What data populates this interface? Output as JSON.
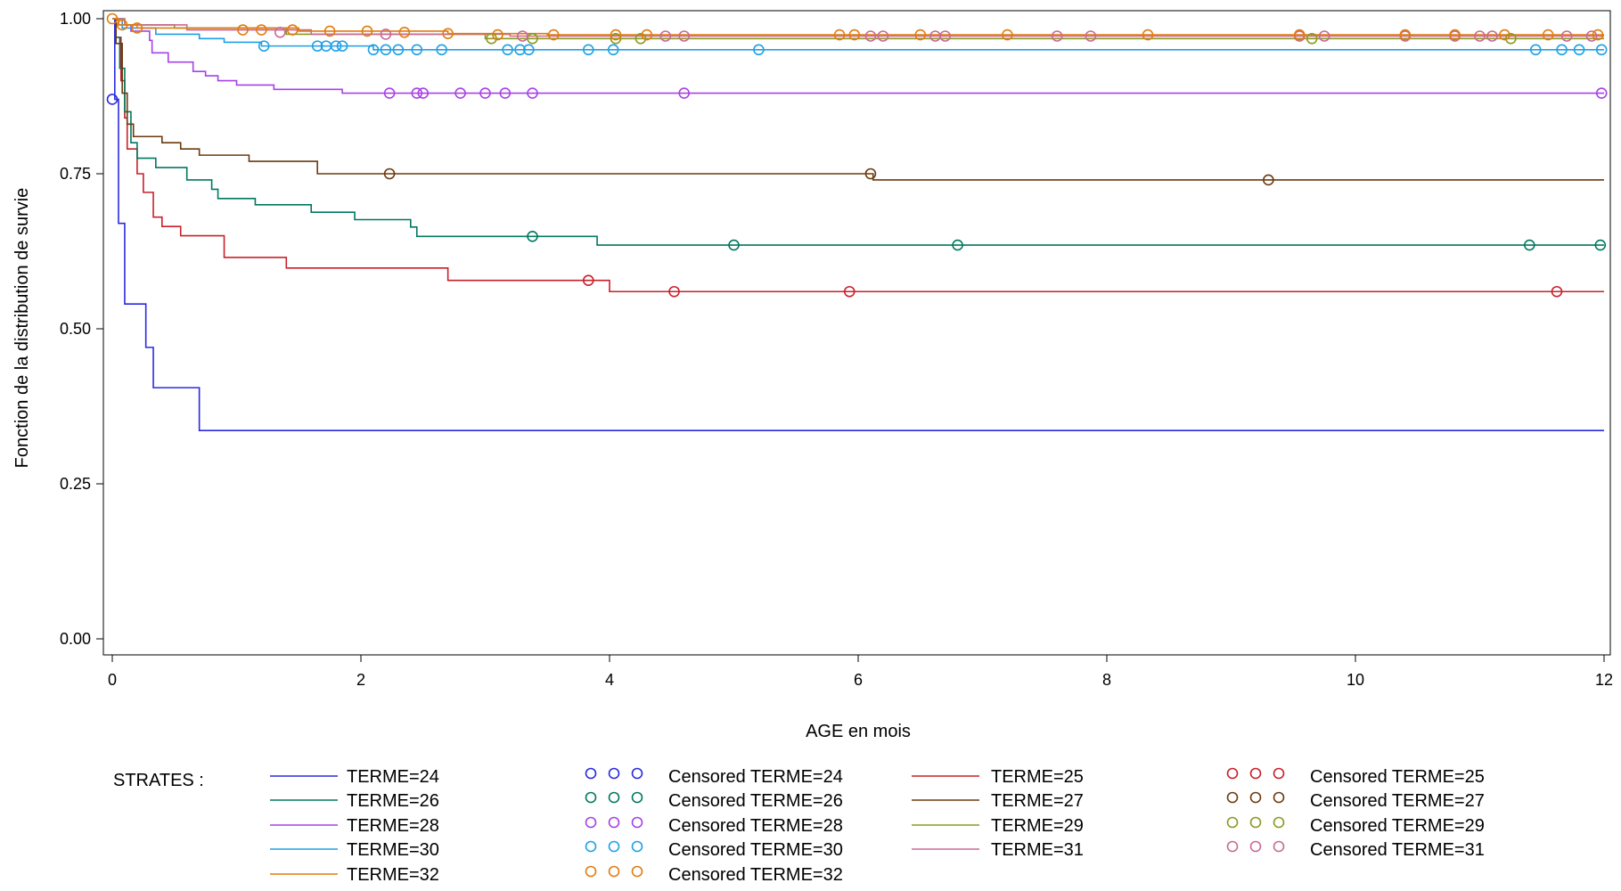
{
  "chart_data": {
    "type": "line",
    "subtype": "kaplan-meier survival step plot",
    "xlabel": "AGE en mois",
    "ylabel": "Fonction de la distribution de survie",
    "xlim": [
      0,
      12
    ],
    "ylim": [
      0,
      1
    ],
    "x_ticks": [
      "0",
      "2",
      "4",
      "6",
      "8",
      "10",
      "12"
    ],
    "y_ticks": [
      "0.00",
      "0.25",
      "0.50",
      "0.75",
      "1.00"
    ],
    "grid": false,
    "legend_title": "STRATES :",
    "legend_position": "bottom",
    "series": [
      {
        "name": "TERME=24",
        "censored_name": "Censored TERME=24",
        "color": "#2a2ae0",
        "steps": [
          [
            0,
            1.0
          ],
          [
            0.02,
            0.87
          ],
          [
            0.05,
            0.67
          ],
          [
            0.1,
            0.54
          ],
          [
            0.27,
            0.47
          ],
          [
            0.33,
            0.405
          ],
          [
            0.7,
            0.336
          ],
          [
            12,
            0.336
          ]
        ],
        "censored": [
          [
            0.0,
            0.87
          ]
        ]
      },
      {
        "name": "TERME=25",
        "censored_name": "Censored TERME=25",
        "color": "#c8202a",
        "steps": [
          [
            0,
            1.0
          ],
          [
            0.03,
            0.97
          ],
          [
            0.07,
            0.9
          ],
          [
            0.1,
            0.84
          ],
          [
            0.12,
            0.79
          ],
          [
            0.2,
            0.75
          ],
          [
            0.25,
            0.72
          ],
          [
            0.33,
            0.68
          ],
          [
            0.4,
            0.665
          ],
          [
            0.55,
            0.65
          ],
          [
            0.9,
            0.615
          ],
          [
            1.4,
            0.598
          ],
          [
            2.7,
            0.578
          ],
          [
            4.0,
            0.56
          ],
          [
            12,
            0.56
          ]
        ],
        "censored": [
          [
            3.83,
            0.578
          ],
          [
            4.52,
            0.56
          ],
          [
            5.93,
            0.56
          ],
          [
            11.62,
            0.56
          ]
        ]
      },
      {
        "name": "TERME=26",
        "censored_name": "Censored TERME=26",
        "color": "#007860",
        "steps": [
          [
            0,
            1.0
          ],
          [
            0.03,
            0.97
          ],
          [
            0.06,
            0.92
          ],
          [
            0.1,
            0.85
          ],
          [
            0.15,
            0.8
          ],
          [
            0.2,
            0.775
          ],
          [
            0.35,
            0.76
          ],
          [
            0.6,
            0.74
          ],
          [
            0.8,
            0.725
          ],
          [
            0.85,
            0.71
          ],
          [
            1.15,
            0.7
          ],
          [
            1.6,
            0.688
          ],
          [
            1.95,
            0.676
          ],
          [
            2.4,
            0.664
          ],
          [
            2.45,
            0.649
          ],
          [
            3.9,
            0.635
          ],
          [
            12,
            0.635
          ]
        ],
        "censored": [
          [
            3.38,
            0.649
          ],
          [
            5.0,
            0.635
          ],
          [
            6.8,
            0.635
          ],
          [
            11.4,
            0.635
          ],
          [
            11.97,
            0.635
          ]
        ]
      },
      {
        "name": "TERME=27",
        "censored_name": "Censored TERME=27",
        "color": "#6b3a0e",
        "steps": [
          [
            0,
            1.0
          ],
          [
            0.03,
            0.96
          ],
          [
            0.08,
            0.88
          ],
          [
            0.12,
            0.83
          ],
          [
            0.17,
            0.81
          ],
          [
            0.4,
            0.8
          ],
          [
            0.55,
            0.79
          ],
          [
            0.7,
            0.78
          ],
          [
            1.1,
            0.77
          ],
          [
            1.65,
            0.75
          ],
          [
            6.12,
            0.74
          ],
          [
            12,
            0.74
          ]
        ],
        "censored": [
          [
            2.23,
            0.75
          ],
          [
            6.1,
            0.75
          ],
          [
            9.3,
            0.74
          ]
        ]
      },
      {
        "name": "TERME=28",
        "censored_name": "Censored TERME=28",
        "color": "#a642e6",
        "steps": [
          [
            0,
            1.0
          ],
          [
            0.05,
            0.99
          ],
          [
            0.15,
            0.98
          ],
          [
            0.3,
            0.965
          ],
          [
            0.32,
            0.945
          ],
          [
            0.45,
            0.93
          ],
          [
            0.65,
            0.915
          ],
          [
            0.75,
            0.908
          ],
          [
            0.85,
            0.9
          ],
          [
            1.0,
            0.893
          ],
          [
            1.3,
            0.886
          ],
          [
            1.85,
            0.88
          ],
          [
            12,
            0.88
          ]
        ],
        "censored": [
          [
            2.23,
            0.88
          ],
          [
            2.45,
            0.88
          ],
          [
            2.5,
            0.88
          ],
          [
            2.8,
            0.88
          ],
          [
            3.0,
            0.88
          ],
          [
            3.16,
            0.88
          ],
          [
            3.38,
            0.88
          ],
          [
            4.6,
            0.88
          ],
          [
            11.98,
            0.88
          ]
        ]
      },
      {
        "name": "TERME=29",
        "censored_name": "Censored TERME=29",
        "color": "#8a9a20",
        "steps": [
          [
            0,
            1.0
          ],
          [
            0.1,
            0.99
          ],
          [
            0.5,
            0.985
          ],
          [
            1.4,
            0.975
          ],
          [
            3.0,
            0.968
          ],
          [
            12,
            0.968
          ]
        ],
        "censored": [
          [
            3.05,
            0.968
          ],
          [
            3.38,
            0.968
          ],
          [
            4.05,
            0.968
          ],
          [
            4.25,
            0.968
          ],
          [
            9.65,
            0.968
          ],
          [
            11.25,
            0.968
          ]
        ]
      },
      {
        "name": "TERME=30",
        "censored_name": "Censored TERME=30",
        "color": "#1ea0e6",
        "steps": [
          [
            0,
            1.0
          ],
          [
            0.08,
            0.985
          ],
          [
            0.35,
            0.975
          ],
          [
            0.7,
            0.968
          ],
          [
            0.9,
            0.962
          ],
          [
            1.2,
            0.956
          ],
          [
            2.1,
            0.95
          ],
          [
            12,
            0.95
          ]
        ],
        "censored": [
          [
            1.22,
            0.956
          ],
          [
            1.65,
            0.956
          ],
          [
            1.72,
            0.956
          ],
          [
            1.8,
            0.956
          ],
          [
            1.85,
            0.956
          ],
          [
            2.1,
            0.95
          ],
          [
            2.2,
            0.95
          ],
          [
            2.3,
            0.95
          ],
          [
            2.45,
            0.95
          ],
          [
            2.65,
            0.95
          ],
          [
            3.18,
            0.95
          ],
          [
            3.28,
            0.95
          ],
          [
            3.35,
            0.95
          ],
          [
            3.83,
            0.95
          ],
          [
            4.03,
            0.95
          ],
          [
            5.2,
            0.95
          ],
          [
            11.45,
            0.95
          ],
          [
            11.66,
            0.95
          ],
          [
            11.8,
            0.95
          ],
          [
            11.98,
            0.95
          ]
        ]
      },
      {
        "name": "TERME=31",
        "censored_name": "Censored TERME=31",
        "color": "#c86a96",
        "steps": [
          [
            0,
            1.0
          ],
          [
            0.1,
            0.99
          ],
          [
            0.6,
            0.982
          ],
          [
            1.6,
            0.975
          ],
          [
            3.2,
            0.972
          ],
          [
            12,
            0.972
          ]
        ],
        "censored": [
          [
            1.35,
            0.978
          ],
          [
            2.2,
            0.975
          ],
          [
            3.3,
            0.972
          ],
          [
            4.45,
            0.972
          ],
          [
            4.6,
            0.972
          ],
          [
            6.1,
            0.972
          ],
          [
            6.2,
            0.972
          ],
          [
            6.62,
            0.972
          ],
          [
            6.7,
            0.972
          ],
          [
            7.6,
            0.972
          ],
          [
            7.87,
            0.972
          ],
          [
            9.55,
            0.972
          ],
          [
            9.75,
            0.972
          ],
          [
            10.4,
            0.972
          ],
          [
            10.8,
            0.972
          ],
          [
            11.0,
            0.972
          ],
          [
            11.1,
            0.972
          ],
          [
            11.7,
            0.972
          ],
          [
            11.9,
            0.972
          ]
        ]
      },
      {
        "name": "TERME=32",
        "censored_name": "Censored TERME=32",
        "color": "#e07c10",
        "steps": [
          [
            0,
            1.0
          ],
          [
            0.05,
            0.99
          ],
          [
            0.2,
            0.985
          ],
          [
            1.5,
            0.98
          ],
          [
            2.7,
            0.976
          ],
          [
            3.5,
            0.974
          ],
          [
            12,
            0.974
          ]
        ],
        "censored": [
          [
            0.0,
            1.0
          ],
          [
            0.08,
            0.99
          ],
          [
            0.2,
            0.985
          ],
          [
            1.05,
            0.982
          ],
          [
            1.2,
            0.982
          ],
          [
            1.45,
            0.982
          ],
          [
            1.75,
            0.98
          ],
          [
            2.05,
            0.98
          ],
          [
            2.35,
            0.978
          ],
          [
            2.7,
            0.976
          ],
          [
            3.1,
            0.974
          ],
          [
            3.55,
            0.974
          ],
          [
            4.05,
            0.974
          ],
          [
            4.3,
            0.974
          ],
          [
            5.85,
            0.974
          ],
          [
            5.97,
            0.974
          ],
          [
            6.5,
            0.974
          ],
          [
            7.2,
            0.974
          ],
          [
            8.33,
            0.974
          ],
          [
            9.55,
            0.974
          ],
          [
            10.4,
            0.974
          ],
          [
            10.8,
            0.974
          ],
          [
            11.2,
            0.974
          ],
          [
            11.55,
            0.974
          ],
          [
            11.95,
            0.974
          ]
        ]
      }
    ]
  }
}
